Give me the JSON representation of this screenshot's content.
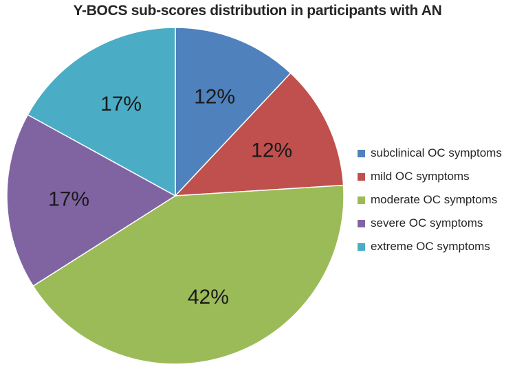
{
  "chart_data": {
    "type": "pie",
    "title": "Y-BOCS sub-scores distribution in participants with AN",
    "slices": [
      {
        "label": "subclinical OC symptoms",
        "value": 12,
        "display": "12%",
        "color": "#4F81BD"
      },
      {
        "label": "mild OC symptoms",
        "value": 12,
        "display": "12%",
        "color": "#C0504D"
      },
      {
        "label": "moderate OC symptoms",
        "value": 42,
        "display": "42%",
        "color": "#9BBB59"
      },
      {
        "label": "severe OC symptoms",
        "value": 17,
        "display": "17%",
        "color": "#8064A2"
      },
      {
        "label": "extreme OC symptoms",
        "value": 17,
        "display": "17%",
        "color": "#4BACC6"
      }
    ],
    "legend_position": "right"
  }
}
